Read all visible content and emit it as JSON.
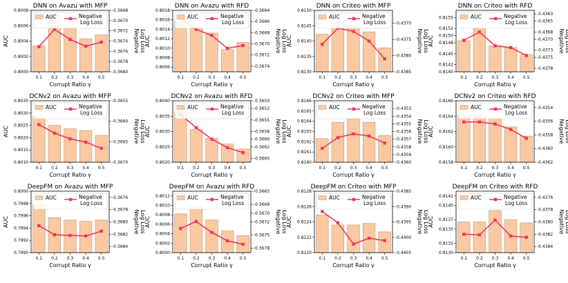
{
  "colors": {
    "bar_fill": "#fbc9a1",
    "bar_edge": "#c58f6d",
    "line": "#f0345e"
  },
  "chart_data": [
    {
      "type": "bar+line",
      "title": "DNN on Avazu with MFP",
      "xlabel": "Corrupt Ratio γ",
      "ylabel": "AUC",
      "y2label": [
        "Negative",
        "Log Loss"
      ],
      "legend": [
        "AUC",
        "Negative",
        "Log Loss"
      ],
      "categories": [
        "0.1",
        "0.2",
        "0.3",
        "0.4",
        "0.5"
      ],
      "ylim": [
        0.8,
        0.8008
      ],
      "yticks": [
        "0.8000",
        "0.8002",
        "0.8004",
        "0.8006",
        "0.8008"
      ],
      "auc": [
        0.80034,
        0.80074,
        0.80058,
        0.80043,
        0.80048
      ],
      "y2lim": [
        -0.368,
        -0.3668
      ],
      "y2ticks": [
        "-0.3680",
        "-0.3678",
        "-0.3676",
        "-0.3674",
        "-0.3672",
        "-0.3670",
        "-0.3668"
      ],
      "loss": [
        -0.36751,
        -0.36717,
        -0.36737,
        -0.3675,
        -0.36742
      ]
    },
    {
      "type": "bar+line",
      "title": "DNN on Avazu with RFD",
      "xlabel": "Corrupt Ratio γ",
      "ylabel": "AUC",
      "y2label": [
        "Negative",
        "Log Loss"
      ],
      "legend": [
        "AUC",
        "Negative",
        "Log Loss"
      ],
      "categories": [
        "0.1",
        "0.2",
        "0.3",
        "0.4",
        "0.5"
      ],
      "ylim": [
        0.8005,
        0.8018
      ],
      "yticks": [
        "0.8006",
        "0.8008",
        "0.8010",
        "0.8012",
        "0.8014",
        "0.8016",
        "0.8018"
      ],
      "auc": [
        0.80158,
        0.80143,
        0.80132,
        0.80097,
        0.80112
      ],
      "y2lim": [
        -0.3675,
        -0.3664
      ],
      "y2ticks": [
        "-0.3674",
        "-0.3672",
        "-0.3670",
        "-0.3668",
        "-0.3666",
        "-0.3664"
      ],
      "loss": [
        -0.36654,
        -0.36674,
        -0.36685,
        -0.36708,
        -0.36703
      ]
    },
    {
      "type": "bar+line",
      "title": "DNN on Criteo with MFP",
      "xlabel": "Corrupt Ratio γ",
      "ylabel": "AUC",
      "y2label": [
        "Negative",
        "Log Loss"
      ],
      "legend": [
        "AUC",
        "Negative",
        "Log Loss"
      ],
      "categories": [
        "0.1",
        "0.2",
        "0.3",
        "0.4",
        "0.5"
      ],
      "ylim": [
        0.813,
        0.815
      ],
      "yticks": [
        "0.8130",
        "0.8135",
        "0.8140",
        "0.8145",
        "0.8150"
      ],
      "auc": [
        0.81422,
        0.81463,
        0.81453,
        0.8143,
        0.81378
      ],
      "y2lim": [
        -0.4385,
        -0.4366
      ],
      "y2ticks": [
        "-0.4385",
        "-0.4380",
        "-0.4375",
        "-0.4370"
      ],
      "loss": [
        -0.43765,
        -0.43715,
        -0.43725,
        -0.43755,
        -0.4381
      ]
    },
    {
      "type": "bar+line",
      "title": "DNN on Criteo with RFD",
      "xlabel": "Corrupt Ratio γ",
      "ylabel": "AUC",
      "y2label": [
        "Negative",
        "Log Loss"
      ],
      "legend": [
        "AUC",
        "Negative",
        "Log Loss"
      ],
      "categories": [
        "0.1",
        "0.2",
        "0.3",
        "0.4",
        "0.5"
      ],
      "ylim": [
        0.814,
        0.8157
      ],
      "yticks": [
        "0.8140",
        "0.8142",
        "0.8145",
        "0.8148",
        "0.8150",
        "0.8152",
        "0.8155"
      ],
      "auc": [
        0.81486,
        0.81521,
        0.81472,
        0.81467,
        0.81448
      ],
      "y2lim": [
        -0.4379,
        -0.4362
      ],
      "y2ticks": [
        "-0.4378",
        "-0.4375",
        "-0.4373",
        "-0.4370",
        "-0.4368",
        "-0.4365",
        "-0.4363"
      ],
      "loss": [
        -0.43703,
        -0.4368,
        -0.43718,
        -0.43723,
        -0.43745
      ]
    },
    {
      "type": "bar+line",
      "title": "DCNv2 on Avazu with MFP",
      "xlabel": "Corrupt Ratio γ",
      "ylabel": "AUC",
      "y2label": [
        "Negative",
        "Log Loss"
      ],
      "legend": [
        "AUC",
        "Negative",
        "Log Loss"
      ],
      "categories": [
        "0.1",
        "0.2",
        "0.3",
        "0.4",
        "0.5"
      ],
      "ylim": [
        0.801,
        0.8035
      ],
      "yticks": [
        "0.8010",
        "0.8015",
        "0.8020",
        "0.8025",
        "0.8030",
        "0.8035"
      ],
      "auc": [
        0.80286,
        0.8025,
        0.80236,
        0.80229,
        0.80209
      ],
      "y2lim": [
        -0.367,
        -0.3655
      ],
      "y2ticks": [
        "-0.3670",
        "-0.3665",
        "-0.3660",
        "-0.3655"
      ],
      "loss": [
        -0.36608,
        -0.36629,
        -0.36643,
        -0.36651,
        -0.36666
      ]
    },
    {
      "type": "bar+line",
      "title": "DCNv2 on Avazu with RFD",
      "xlabel": "Corrupt Ratio γ",
      "ylabel": "AUC",
      "y2label": [
        "Negative",
        "Log Loss"
      ],
      "legend": [
        "AUC",
        "Negative",
        "Log Loss"
      ],
      "categories": [
        "0.1",
        "0.2",
        "0.3",
        "0.4",
        "0.5"
      ],
      "ylim": [
        0.802,
        0.804
      ],
      "yticks": [
        "0.8020",
        "0.8025",
        "0.8030",
        "0.8035",
        "0.8040"
      ],
      "auc": [
        0.80363,
        0.80306,
        0.80278,
        0.80259,
        0.80243
      ],
      "y2lim": [
        -0.3666,
        -0.365
      ],
      "y2ticks": [
        "-0.3665",
        "-0.3662",
        "-0.3660",
        "-0.3658",
        "-0.3655",
        "-0.3652",
        "-0.3650"
      ],
      "loss": [
        -0.36536,
        -0.3657,
        -0.366,
        -0.36622,
        -0.36635
      ]
    },
    {
      "type": "bar+line",
      "title": "DCNv2 on Criteo with MFP",
      "xlabel": "Corrupt Ratio γ",
      "ylabel": "AUC",
      "y2label": [
        "Negative",
        "Log Loss"
      ],
      "legend": [
        "AUC",
        "Negative",
        "Log Loss"
      ],
      "categories": [
        "0.1",
        "0.2",
        "0.3",
        "0.4",
        "0.5"
      ],
      "ylim": [
        0.816,
        0.8166
      ],
      "yticks": [
        "0.8160",
        "0.8161",
        "0.8162",
        "0.8163",
        "0.8164",
        "0.8165",
        "0.8166"
      ],
      "auc": [
        0.81623,
        0.81639,
        0.81642,
        0.81639,
        0.81626
      ],
      "y2lim": [
        -0.436,
        -0.4352
      ],
      "y2ticks": [
        "-0.4360",
        "-0.4359",
        "-0.4358",
        "-0.4357",
        "-0.4356",
        "-0.4355",
        "-0.4354",
        "-0.4353"
      ],
      "loss": [
        -0.43582,
        -0.43568,
        -0.43563,
        -0.43566,
        -0.43575
      ]
    },
    {
      "type": "bar+line",
      "title": "DCNv2 on Criteo with RFD",
      "xlabel": "Corrupt Ratio γ",
      "ylabel": "AUC",
      "y2label": [
        "Negative",
        "Log Loss"
      ],
      "legend": [
        "AUC",
        "Negative",
        "Log Loss"
      ],
      "categories": [
        "0.1",
        "0.2",
        "0.3",
        "0.4",
        "0.5"
      ],
      "ylim": [
        0.8158,
        0.8166
      ],
      "yticks": [
        "0.8158",
        "0.8160",
        "0.8162",
        "0.8164",
        "0.8166"
      ],
      "auc": [
        0.81641,
        0.81641,
        0.81637,
        0.81626,
        0.81614
      ],
      "y2lim": [
        -0.4362,
        -0.4353
      ],
      "y2ticks": [
        "-0.4362",
        "-0.4360",
        "-0.4358",
        "-0.4356",
        "-0.4354"
      ],
      "loss": [
        -0.43561,
        -0.43561,
        -0.43564,
        -0.43572,
        -0.43585
      ]
    },
    {
      "type": "bar+line",
      "title": "DeepFM on Avazu with MFP",
      "xlabel": "Corrupt Ratio γ",
      "ylabel": "AUC",
      "y2label": [
        "Negative",
        "Log Loss"
      ],
      "legend": [
        "AUC",
        "Negative",
        "Log Loss"
      ],
      "categories": [
        "0.1",
        "0.2",
        "0.3",
        "0.4",
        "0.5"
      ],
      "ylim": [
        0.799,
        0.8
      ],
      "yticks": [
        "0.7990",
        "0.7992",
        "0.7994",
        "0.7996",
        "0.7998",
        "0.8000"
      ],
      "auc": [
        0.79978,
        0.79957,
        0.79953,
        0.79951,
        0.79953
      ],
      "y2lim": [
        -0.3685,
        -0.3675
      ],
      "y2ticks": [
        "-0.3684",
        "-0.3682",
        "-0.3680",
        "-0.3678",
        "-0.3676"
      ],
      "loss": [
        -0.36806,
        -0.36821,
        -0.36822,
        -0.36823,
        -0.36815
      ]
    },
    {
      "type": "bar+line",
      "title": "DeepFM on Avazu with RFD",
      "xlabel": "Corrupt Ratio γ",
      "ylabel": "AUC",
      "y2label": [
        "Negative",
        "Log Loss"
      ],
      "legend": [
        "AUC",
        "Negative",
        "Log Loss"
      ],
      "categories": [
        "0.1",
        "0.2",
        "0.3",
        "0.4",
        "0.5"
      ],
      "ylim": [
        0.8,
        0.8013
      ],
      "yticks": [
        "0.8000",
        "0.8002",
        "0.8004",
        "0.8006",
        "0.8008",
        "0.8010",
        "0.8012"
      ],
      "auc": [
        0.80082,
        0.80099,
        0.80069,
        0.80046,
        0.80036
      ],
      "y2lim": [
        -0.3679,
        -0.3665
      ],
      "y2ticks": [
        "-0.3678",
        "-0.3675",
        "-0.3672",
        "-0.3670",
        "-0.3668",
        "-0.3665"
      ],
      "loss": [
        -0.36735,
        -0.36719,
        -0.36744,
        -0.36763,
        -0.36771
      ]
    },
    {
      "type": "bar+line",
      "title": "DeepFM on Criteo with MFP",
      "xlabel": "Corrupt Ratio γ",
      "ylabel": "AUC",
      "y2label": [
        "Negative",
        "Log Loss"
      ],
      "legend": [
        "AUC",
        "Negative",
        "Log Loss"
      ],
      "categories": [
        "0.1",
        "0.2",
        "0.3",
        "0.4",
        "0.5"
      ],
      "ylim": [
        0.812,
        0.8128
      ],
      "yticks": [
        "0.8120",
        "0.8122",
        "0.8124",
        "0.8126",
        "0.8128"
      ],
      "auc": [
        0.81249,
        0.81236,
        0.81236,
        0.81238,
        0.81227
      ],
      "y2lim": [
        -0.4405,
        -0.4385
      ],
      "y2ticks": [
        "-0.4405",
        "-0.4400",
        "-0.4395",
        "-0.4390",
        "-0.4385"
      ],
      "loss": [
        -0.43916,
        -0.43953,
        -0.44022,
        -0.44003,
        -0.44011
      ]
    },
    {
      "type": "bar+line",
      "title": "DeepFM on Criteo with RFD",
      "xlabel": "Corrupt Ratio γ",
      "ylabel": "AUC",
      "y2label": [
        "Negative",
        "Log Loss"
      ],
      "legend": [
        "AUC",
        "Negative",
        "Log Loss"
      ],
      "categories": [
        "0.1",
        "0.2",
        "0.3",
        "0.4",
        "0.5"
      ],
      "ylim": [
        0.813,
        0.8143
      ],
      "yticks": [
        "0.8130",
        "0.8132",
        "0.8135",
        "0.8137",
        "0.8140",
        "0.8142"
      ],
      "auc": [
        0.81365,
        0.81365,
        0.81389,
        0.8137,
        0.81363
      ],
      "y2lim": [
        -0.4385,
        -0.4375
      ],
      "y2ticks": [
        "-0.4384",
        "-0.4382",
        "-0.4380",
        "-0.4378",
        "-0.4376"
      ],
      "loss": [
        -0.4382,
        -0.43821,
        -0.43797,
        -0.43823,
        -0.43825
      ]
    }
  ]
}
